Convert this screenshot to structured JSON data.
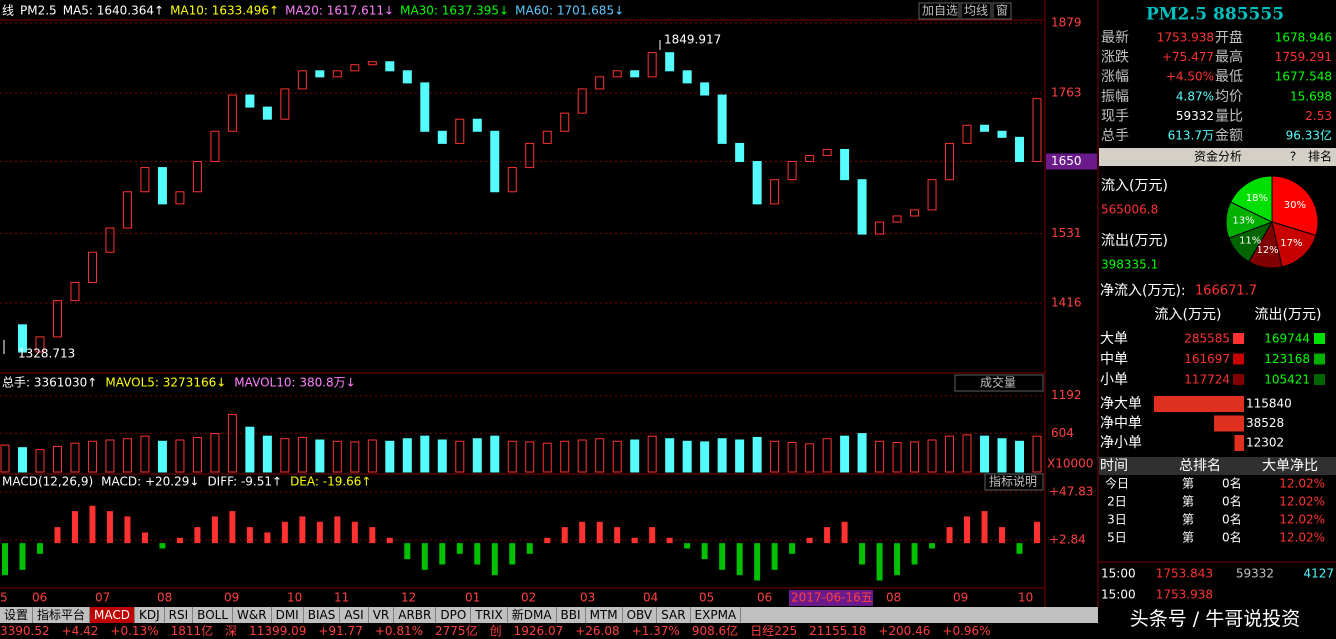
{
  "header": {
    "items": [
      {
        "text": "线",
        "color": "#ffffff"
      },
      {
        "text": "PM2.5",
        "color": "#ffffff"
      },
      {
        "text": "MA5: 1640.364↑",
        "color": "#ffffff"
      },
      {
        "text": "MA10: 1633.496↑",
        "color": "#ffff00"
      },
      {
        "text": "MA20: 1617.611↓",
        "color": "#ff80ff"
      },
      {
        "text": "MA30: 1637.395↓",
        "color": "#00ff00"
      },
      {
        "text": "MA60: 1701.685↓",
        "color": "#60c8ff"
      }
    ],
    "toolbar": [
      "加自选",
      "均线",
      "窗"
    ]
  },
  "price_chart": {
    "ylim": [
      1302,
      1884
    ],
    "yticks": [
      1879,
      1763,
      1650,
      1531,
      1416
    ],
    "high_label": "1849.917",
    "low_label": "1328.713",
    "closes": [
      1380,
      1335,
      1360,
      1420,
      1450,
      1500,
      1540,
      1600,
      1640,
      1580,
      1600,
      1650,
      1700,
      1760,
      1740,
      1720,
      1770,
      1800,
      1790,
      1800,
      1810,
      1815,
      1800,
      1780,
      1700,
      1680,
      1720,
      1700,
      1600,
      1640,
      1680,
      1700,
      1730,
      1770,
      1790,
      1800,
      1790,
      1830,
      1800,
      1780,
      1760,
      1680,
      1650,
      1580,
      1620,
      1650,
      1660,
      1670,
      1620,
      1530,
      1550,
      1560,
      1570,
      1620,
      1680,
      1710,
      1700,
      1690,
      1650,
      1754
    ]
  },
  "volume_chart": {
    "header": [
      "总手: 3361030↑",
      "MAVOL5: 3273166↓",
      "MAVOL10: 380.8万↓"
    ],
    "button": "成交量",
    "unit": "X10000",
    "ylim": [
      0,
      1500
    ],
    "yticks": [
      1192,
      604
    ],
    "values": [
      420,
      380,
      350,
      400,
      450,
      480,
      500,
      520,
      560,
      480,
      500,
      540,
      600,
      900,
      700,
      560,
      520,
      540,
      500,
      480,
      470,
      500,
      480,
      520,
      560,
      500,
      480,
      520,
      560,
      480,
      470,
      450,
      480,
      500,
      520,
      480,
      500,
      560,
      520,
      480,
      470,
      520,
      500,
      540,
      480,
      460,
      440,
      520,
      560,
      600,
      480,
      460,
      470,
      500,
      560,
      580,
      560,
      520,
      480,
      560
    ]
  },
  "macd_chart": {
    "header": [
      "MACD(12,26,9)",
      "MACD: +20.29↓",
      "DIFF: -9.51↑",
      "DEA: -19.66↑"
    ],
    "button": "指标说明",
    "ylim": [
      -42,
      61
    ],
    "yticks": [
      {
        "value": 47.83,
        "label": "+47.83"
      },
      {
        "value": 2.84,
        "label": "+2.84"
      }
    ],
    "values": [
      -30,
      -25,
      -10,
      15,
      30,
      35,
      30,
      25,
      10,
      -5,
      5,
      15,
      25,
      30,
      15,
      10,
      20,
      25,
      20,
      25,
      20,
      15,
      5,
      -15,
      -25,
      -20,
      -10,
      -20,
      -30,
      -20,
      -10,
      5,
      15,
      20,
      20,
      15,
      5,
      15,
      5,
      -5,
      -15,
      -25,
      -30,
      -35,
      -25,
      -10,
      5,
      15,
      20,
      -20,
      -35,
      -30,
      -20,
      -5,
      15,
      25,
      30,
      15,
      -10,
      20
    ]
  },
  "x_labels": [
    "5",
    "06",
    "07",
    "08",
    "09",
    "10",
    "11",
    "12",
    "01",
    "02",
    "03",
    "04",
    "05",
    "06",
    "2017-06-16五",
    "08",
    "09",
    "10"
  ],
  "tabs": [
    "设置",
    "指标平台",
    "MACD",
    "KDJ",
    "RSI",
    "BOLL",
    "W&R",
    "DMI",
    "BIAS",
    "ASI",
    "VR",
    "ARBR",
    "DPO",
    "TRIX",
    "新DMA",
    "BBI",
    "MTM",
    "OBV",
    "SAR",
    "EXPMA"
  ],
  "status_bar": [
    "3390.52",
    "+4.42",
    "+0.13%",
    "1811亿",
    "深",
    "11399.09",
    "+91.77",
    "+0.81%",
    "2775亿",
    "创",
    "1926.07",
    "+26.08",
    "+1.37%",
    "908.6亿",
    "日经225",
    "21155.18",
    "+200.46",
    "+0.96%"
  ],
  "watermark": "头条号 / 牛哥说投资",
  "quote": {
    "title": "PM2.5 885555",
    "rows": [
      [
        "最新",
        "1753.938",
        "开盘",
        "1678.946"
      ],
      [
        "涨跌",
        "+75.477",
        "最高",
        "1759.291"
      ],
      [
        "涨幅",
        "+4.50%",
        "最低",
        "1677.548"
      ],
      [
        "振幅",
        "4.87%",
        "均价",
        "15.698"
      ],
      [
        "现手",
        "59332",
        "量比",
        "2.53"
      ],
      [
        "总手",
        "613.7万",
        "金额",
        "96.33亿"
      ]
    ]
  },
  "fund": {
    "tabs": [
      "资金分析",
      "?",
      "排名"
    ],
    "inflow_label": "流入(万元)",
    "inflow": "565006.8",
    "outflow_label": "流出(万元)",
    "outflow": "398335.1",
    "pie": {
      "values": [
        30,
        17,
        12,
        11,
        13,
        18
      ],
      "value_labels": [
        "30%",
        "17%",
        "12%",
        "11%",
        "13%",
        "18%"
      ],
      "colors": [
        "#ff0000",
        "#c80000",
        "#800000",
        "#006400",
        "#00b000",
        "#00e000"
      ]
    },
    "net_label": "净流入(万元):",
    "net": "166671.7",
    "table_header": [
      "流入(万元)",
      "流出(万元)"
    ],
    "table": [
      [
        "大单",
        "285585",
        "169744"
      ],
      [
        "中单",
        "161697",
        "123168"
      ],
      [
        "小单",
        "117724",
        "105421"
      ]
    ],
    "net_rows": [
      {
        "label": "净大单",
        "value": 115840
      },
      {
        "label": "净中单",
        "value": 38528
      },
      {
        "label": "净小单",
        "value": 12302
      }
    ]
  },
  "ranking": {
    "header": [
      "时间",
      "总排名",
      "大单净比"
    ],
    "rows": [
      [
        "今日",
        "第",
        "0名",
        "12.02%"
      ],
      [
        "2日",
        "第",
        "0名",
        "12.02%"
      ],
      [
        "3日",
        "第",
        "0名",
        "12.02%"
      ],
      [
        "5日",
        "第",
        "0名",
        "12.02%"
      ]
    ]
  },
  "ticks": [
    [
      "15:00",
      "1753.843",
      "59332",
      "4127"
    ],
    [
      "15:00",
      "1753.938"
    ]
  ]
}
